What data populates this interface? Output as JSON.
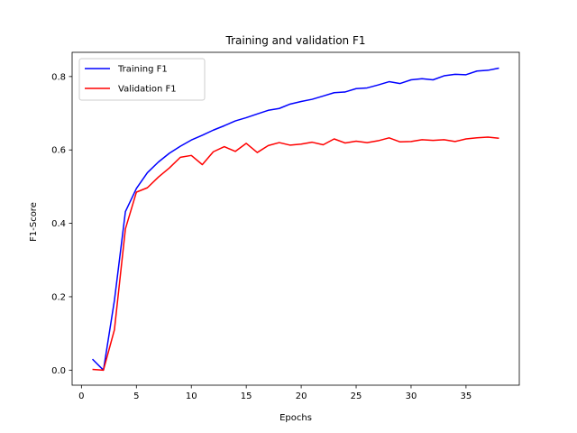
{
  "chart_data": {
    "type": "line",
    "title": "Training and validation F1",
    "xlabel": "Epochs",
    "ylabel": "F1-Score",
    "xlim": [
      -0.85,
      39.85
    ],
    "ylim": [
      -0.041,
      0.866
    ],
    "xticks": [
      0,
      5,
      10,
      15,
      20,
      25,
      30,
      35
    ],
    "xtick_labels": [
      "0",
      "5",
      "10",
      "15",
      "20",
      "25",
      "30",
      "35"
    ],
    "yticks": [
      0.0,
      0.2,
      0.4,
      0.6,
      0.8
    ],
    "ytick_labels": [
      "0.0",
      "0.2",
      "0.4",
      "0.6",
      "0.8"
    ],
    "grid": false,
    "legend_position": "upper-left",
    "x": [
      1,
      2,
      3,
      4,
      5,
      6,
      7,
      8,
      9,
      10,
      11,
      12,
      13,
      14,
      15,
      16,
      17,
      18,
      19,
      20,
      21,
      22,
      23,
      24,
      25,
      26,
      27,
      28,
      29,
      30,
      31,
      32,
      33,
      34,
      35,
      36,
      37,
      38
    ],
    "series": [
      {
        "name": "Training F1",
        "color": "#0000ff",
        "values": [
          0.03,
          0.0,
          0.19,
          0.432,
          0.495,
          0.538,
          0.567,
          0.591,
          0.61,
          0.627,
          0.64,
          0.654,
          0.666,
          0.679,
          0.688,
          0.698,
          0.708,
          0.713,
          0.725,
          0.732,
          0.738,
          0.747,
          0.756,
          0.758,
          0.767,
          0.769,
          0.777,
          0.786,
          0.781,
          0.791,
          0.794,
          0.791,
          0.802,
          0.806,
          0.805,
          0.815,
          0.817,
          0.823
        ]
      },
      {
        "name": "Validation F1",
        "color": "#ff0000",
        "values": [
          0.002,
          0.0,
          0.11,
          0.385,
          0.485,
          0.497,
          0.526,
          0.551,
          0.58,
          0.585,
          0.56,
          0.595,
          0.609,
          0.596,
          0.618,
          0.593,
          0.612,
          0.62,
          0.613,
          0.616,
          0.621,
          0.614,
          0.63,
          0.619,
          0.624,
          0.62,
          0.625,
          0.633,
          0.622,
          0.623,
          0.628,
          0.626,
          0.628,
          0.623,
          0.63,
          0.633,
          0.635,
          0.632
        ]
      }
    ]
  }
}
